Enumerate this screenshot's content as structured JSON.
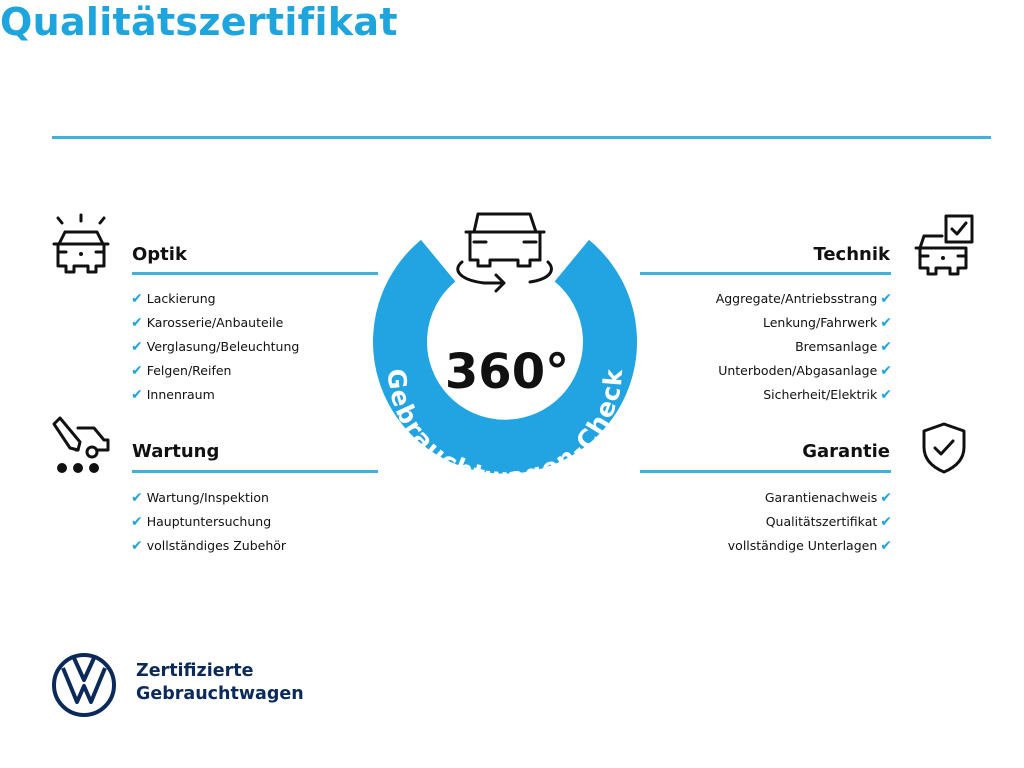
{
  "title": "Qualitätszertifikat",
  "colors": {
    "accent": "#1ea5dd",
    "ring": "#22a4e2",
    "brand_navy": "#0b2a5b"
  },
  "center": {
    "number": "360°",
    "ring_text": "Gebrauchtwagen-Check",
    "icon": "car-rotate-icon"
  },
  "sections": {
    "optik": {
      "title": "Optik",
      "icon": "car-lights-icon",
      "items": [
        "Lackierung",
        "Karosserie/Anbauteile",
        "Verglasung/Beleuchtung",
        "Felgen/Reifen",
        "Innenraum"
      ]
    },
    "wartung": {
      "title": "Wartung",
      "icon": "service-van-icon",
      "items": [
        "Wartung/Inspektion",
        "Hauptuntersuchung",
        "vollständiges Zubehör"
      ]
    },
    "technik": {
      "title": "Technik",
      "icon": "car-checklist-icon",
      "items": [
        "Aggregate/Antriebsstrang",
        "Lenkung/Fahrwerk",
        "Bremsanlage",
        "Unterboden/Abgasanlage",
        "Sicherheit/Elektrik"
      ]
    },
    "garantie": {
      "title": "Garantie",
      "icon": "shield-check-icon",
      "items": [
        "Garantienachweis",
        "Qualitätszertifikat",
        "vollständige Unterlagen"
      ]
    }
  },
  "check_mark": "✔",
  "brand": {
    "line1": "Zertifizierte",
    "line2": "Gebrauchtwagen",
    "logo": "vw-logo"
  }
}
